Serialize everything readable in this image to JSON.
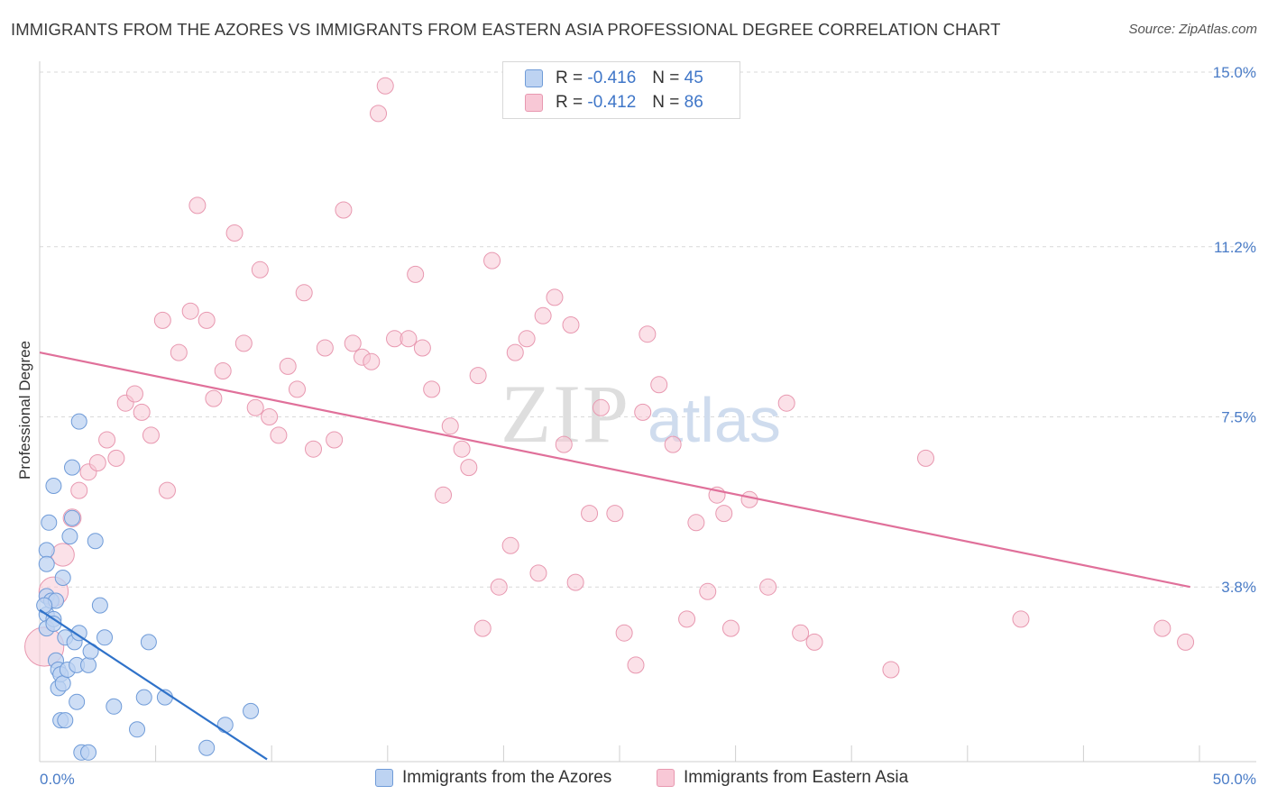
{
  "title": "IMMIGRANTS FROM THE AZORES VS IMMIGRANTS FROM EASTERN ASIA PROFESSIONAL DEGREE CORRELATION CHART",
  "source": "Source: ZipAtlas.com",
  "watermark": {
    "zip": "ZIP",
    "atlas": "atlas"
  },
  "colors": {
    "blue_fill": "#bdd3f2",
    "blue_stroke": "#6f9bd8",
    "blue_line": "#2f72c9",
    "pink_fill": "#f8c8d6",
    "pink_stroke": "#e898b0",
    "pink_line": "#e0709a",
    "tick_text": "#4a7cc7",
    "grid": "#d9d9d9"
  },
  "legend": {
    "rows": [
      {
        "r_label": "R = ",
        "r_value": "-0.416",
        "n_label": "N = ",
        "n_value": "45"
      },
      {
        "r_label": "R = ",
        "r_value": "-0.412",
        "n_label": "N = ",
        "n_value": "86"
      }
    ]
  },
  "chart_data": {
    "type": "scatter",
    "title": "IMMIGRANTS FROM THE AZORES VS IMMIGRANTS FROM EASTERN ASIA PROFESSIONAL DEGREE CORRELATION CHART",
    "xlabel": "",
    "ylabel": "Professional Degree",
    "xlim": [
      0,
      52
    ],
    "ylim": [
      0,
      15.8
    ],
    "x_tick_labels": [
      {
        "value": 0,
        "label": "0.0%"
      },
      {
        "value": 50,
        "label": "50.0%"
      }
    ],
    "y_tick_labels": [
      {
        "value": 3.8,
        "label": "3.8%"
      },
      {
        "value": 7.5,
        "label": "7.5%"
      },
      {
        "value": 11.2,
        "label": "11.2%"
      },
      {
        "value": 15.0,
        "label": "15.0%"
      }
    ],
    "grid": true,
    "legend_position": "top-center",
    "series": [
      {
        "name": "Immigrants from the Azores",
        "r": -0.416,
        "n": 45,
        "trend": {
          "x": [
            0,
            9.8
          ],
          "y": [
            3.3,
            0.05
          ]
        },
        "points": [
          [
            0.3,
            4.6,
            1
          ],
          [
            0.3,
            4.3,
            1
          ],
          [
            0.3,
            3.6,
            1
          ],
          [
            0.3,
            3.2,
            1
          ],
          [
            0.3,
            2.9,
            1
          ],
          [
            0.4,
            5.2,
            1
          ],
          [
            0.5,
            3.5,
            1
          ],
          [
            0.6,
            3.1,
            1
          ],
          [
            0.6,
            3.0,
            1
          ],
          [
            0.6,
            6.0,
            1
          ],
          [
            0.7,
            3.5,
            1
          ],
          [
            0.7,
            2.2,
            1
          ],
          [
            0.8,
            2.0,
            1
          ],
          [
            0.8,
            1.6,
            1
          ],
          [
            0.9,
            1.9,
            1
          ],
          [
            0.9,
            0.9,
            1
          ],
          [
            1.0,
            4.0,
            1
          ],
          [
            1.0,
            1.7,
            1
          ],
          [
            1.1,
            2.7,
            1
          ],
          [
            1.1,
            0.9,
            1
          ],
          [
            1.2,
            2.0,
            1
          ],
          [
            1.3,
            4.9,
            1
          ],
          [
            1.4,
            5.3,
            1
          ],
          [
            1.4,
            6.4,
            1
          ],
          [
            1.5,
            2.6,
            1
          ],
          [
            1.6,
            2.1,
            1
          ],
          [
            1.6,
            1.3,
            1
          ],
          [
            1.7,
            7.4,
            1
          ],
          [
            1.7,
            2.8,
            1
          ],
          [
            1.8,
            0.2,
            1
          ],
          [
            2.1,
            0.2,
            1
          ],
          [
            2.1,
            2.1,
            1
          ],
          [
            2.2,
            2.4,
            1
          ],
          [
            2.4,
            4.8,
            1
          ],
          [
            2.6,
            3.4,
            1
          ],
          [
            2.8,
            2.7,
            1
          ],
          [
            3.2,
            1.2,
            1
          ],
          [
            4.2,
            0.7,
            1
          ],
          [
            4.5,
            1.4,
            1
          ],
          [
            4.7,
            2.6,
            1
          ],
          [
            5.4,
            1.4,
            1
          ],
          [
            7.2,
            0.3,
            1
          ],
          [
            8.0,
            0.8,
            1
          ],
          [
            9.1,
            1.1,
            1
          ],
          [
            0.2,
            3.4,
            1
          ]
        ]
      },
      {
        "name": "Immigrants from Eastern Asia",
        "r": -0.412,
        "n": 86,
        "trend": {
          "x": [
            0,
            49.6
          ],
          "y": [
            8.9,
            3.8
          ]
        },
        "points": [
          [
            0.2,
            2.5,
            2.4
          ],
          [
            0.6,
            3.7,
            1.8
          ],
          [
            1.0,
            4.5,
            1.4
          ],
          [
            1.4,
            5.3,
            1.1
          ],
          [
            1.7,
            5.9,
            1
          ],
          [
            2.1,
            6.3,
            1
          ],
          [
            2.5,
            6.5,
            1
          ],
          [
            2.9,
            7.0,
            1
          ],
          [
            3.3,
            6.6,
            1
          ],
          [
            3.7,
            7.8,
            1
          ],
          [
            4.1,
            8.0,
            1
          ],
          [
            4.4,
            7.6,
            1
          ],
          [
            4.8,
            7.1,
            1
          ],
          [
            5.3,
            9.6,
            1
          ],
          [
            5.5,
            5.9,
            1
          ],
          [
            6.0,
            8.9,
            1
          ],
          [
            6.5,
            9.8,
            1
          ],
          [
            6.8,
            12.1,
            1
          ],
          [
            7.2,
            9.6,
            1
          ],
          [
            7.5,
            7.9,
            1
          ],
          [
            7.9,
            8.5,
            1
          ],
          [
            8.4,
            11.5,
            1
          ],
          [
            8.8,
            9.1,
            1
          ],
          [
            9.3,
            7.7,
            1
          ],
          [
            9.5,
            10.7,
            1
          ],
          [
            9.9,
            7.5,
            1
          ],
          [
            10.3,
            7.1,
            1
          ],
          [
            10.7,
            8.6,
            1
          ],
          [
            11.1,
            8.1,
            1
          ],
          [
            11.4,
            10.2,
            1
          ],
          [
            11.8,
            6.8,
            1
          ],
          [
            12.3,
            9.0,
            1
          ],
          [
            12.7,
            7.0,
            1
          ],
          [
            13.1,
            12.0,
            1
          ],
          [
            13.5,
            9.1,
            1
          ],
          [
            13.9,
            8.8,
            1
          ],
          [
            14.3,
            8.7,
            1
          ],
          [
            14.6,
            14.1,
            1
          ],
          [
            14.9,
            14.7,
            1
          ],
          [
            15.3,
            9.2,
            1
          ],
          [
            15.9,
            9.2,
            1
          ],
          [
            16.2,
            10.6,
            1
          ],
          [
            16.5,
            9.0,
            1
          ],
          [
            16.9,
            8.1,
            1
          ],
          [
            17.4,
            5.8,
            1
          ],
          [
            17.7,
            7.3,
            1
          ],
          [
            18.2,
            6.8,
            1
          ],
          [
            18.5,
            6.4,
            1
          ],
          [
            18.9,
            8.4,
            1
          ],
          [
            19.1,
            2.9,
            1
          ],
          [
            19.5,
            10.9,
            1
          ],
          [
            19.8,
            3.8,
            1
          ],
          [
            20.3,
            4.7,
            1
          ],
          [
            20.5,
            8.9,
            1
          ],
          [
            21.0,
            9.2,
            1
          ],
          [
            21.5,
            4.1,
            1
          ],
          [
            21.7,
            9.7,
            1
          ],
          [
            22.2,
            10.1,
            1
          ],
          [
            22.6,
            6.9,
            1
          ],
          [
            22.9,
            9.5,
            1
          ],
          [
            23.1,
            3.9,
            1
          ],
          [
            23.7,
            5.4,
            1
          ],
          [
            24.2,
            7.7,
            1
          ],
          [
            24.8,
            5.4,
            1
          ],
          [
            25.2,
            2.8,
            1
          ],
          [
            25.7,
            2.1,
            1
          ],
          [
            26.0,
            7.6,
            1
          ],
          [
            26.2,
            9.3,
            1
          ],
          [
            26.7,
            8.2,
            1
          ],
          [
            27.3,
            6.9,
            1
          ],
          [
            27.9,
            3.1,
            1
          ],
          [
            28.3,
            5.2,
            1
          ],
          [
            28.8,
            3.7,
            1
          ],
          [
            29.2,
            5.8,
            1
          ],
          [
            29.5,
            5.4,
            1
          ],
          [
            29.8,
            2.9,
            1
          ],
          [
            30.6,
            5.7,
            1
          ],
          [
            31.4,
            3.8,
            1
          ],
          [
            32.2,
            7.8,
            1
          ],
          [
            32.8,
            2.8,
            1
          ],
          [
            33.4,
            2.6,
            1
          ],
          [
            36.7,
            2.0,
            1
          ],
          [
            38.2,
            6.6,
            1
          ],
          [
            42.3,
            3.1,
            1
          ],
          [
            48.4,
            2.9,
            1
          ],
          [
            49.4,
            2.6,
            1
          ]
        ]
      }
    ]
  },
  "bottom_legend": [
    {
      "label": "Immigrants from the Azores"
    },
    {
      "label": "Immigrants from Eastern Asia"
    }
  ]
}
